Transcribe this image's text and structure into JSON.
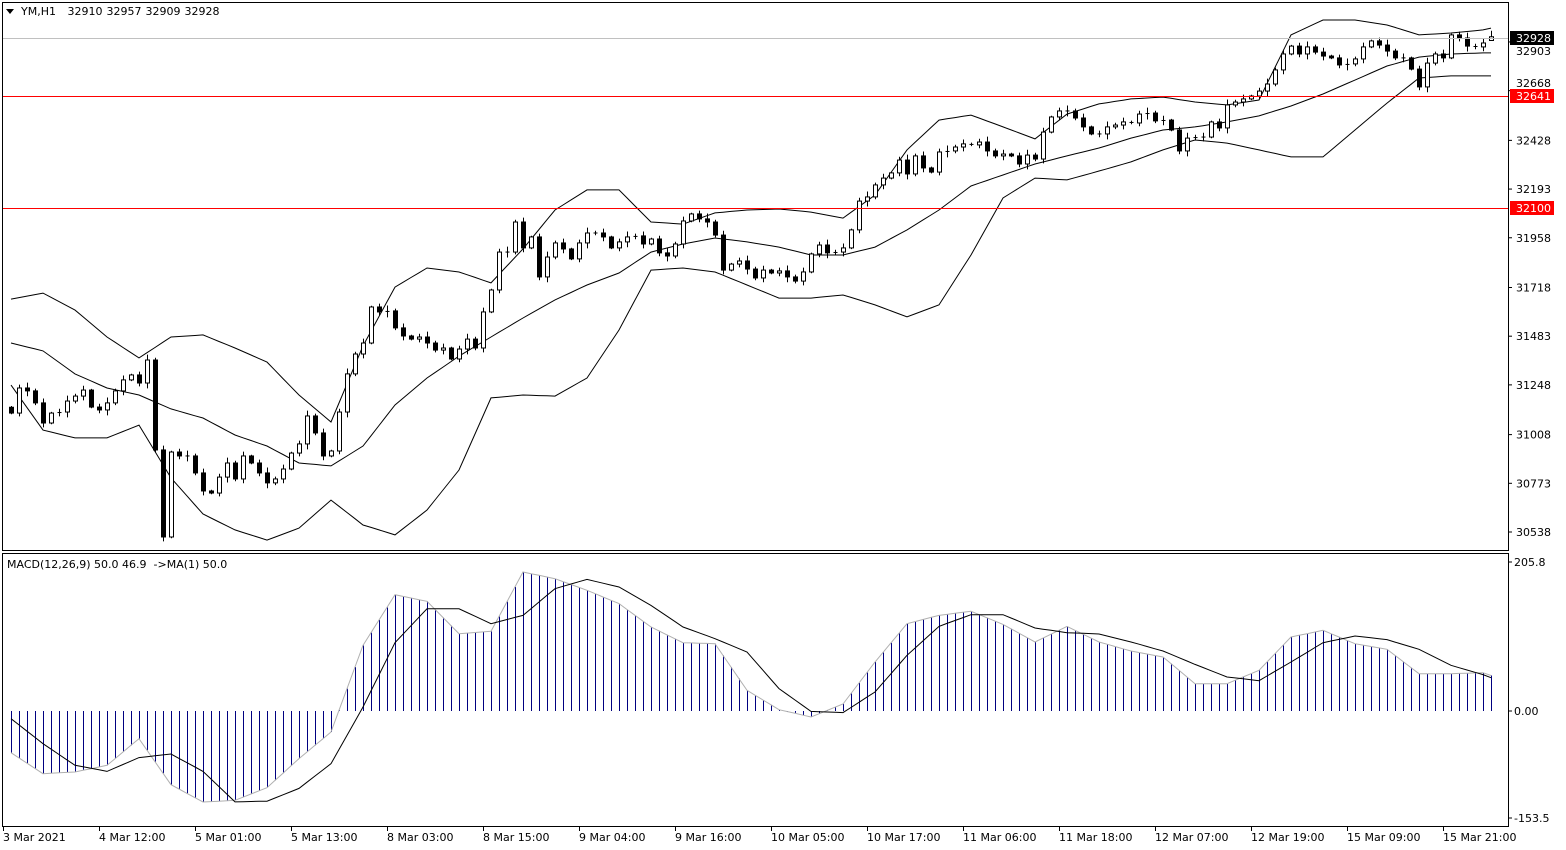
{
  "header": {
    "symbol": "YM,H1",
    "open": "32910",
    "high": "32957",
    "low": "32909",
    "close": "32928"
  },
  "macd_label": "MACD(12,26,9) 50.0 46.9  ->MA(1) 50.0",
  "chart_data": {
    "type": "candlestick",
    "symbol": "YM",
    "timeframe": "H1",
    "colors": {
      "bull_body": "#ffffff",
      "bear_body": "#000000",
      "level_line": "#ff0000",
      "bid_line": "#c0c0c0",
      "macd_histogram": "#000080",
      "macd_line": "#b0b0b0",
      "signal_line": "#000000"
    },
    "closes": [
      31112,
      31233,
      31219,
      31161,
      31064,
      31112,
      31117,
      31170,
      31194,
      31223,
      31141,
      31127,
      31161,
      31219,
      31272,
      31296,
      31257,
      31368,
      30934,
      30514,
      30924,
      30905,
      30905,
      30823,
      30736,
      30726,
      30803,
      30871,
      30794,
      30905,
      30871,
      30823,
      30775,
      30794,
      30842,
      30919,
      30963,
      31098,
      31016,
      30905,
      30929,
      31117,
      31301,
      31397,
      31450,
      31624,
      31600,
      31605,
      31523,
      31484,
      31469,
      31479,
      31450,
      31416,
      31426,
      31373,
      31421,
      31469,
      31426,
      31600,
      31706,
      31889,
      31889,
      32034,
      31909,
      31962,
      31769,
      31865,
      31933,
      31904,
      31856,
      31933,
      31981,
      31981,
      31962,
      31909,
      31938,
      31962,
      31967,
      31928,
      31952,
      31885,
      31870,
      31928,
      32039,
      32073,
      32049,
      32034,
      31971,
      31802,
      31831,
      31846,
      31807,
      31764,
      31802,
      31788,
      31798,
      31769,
      31749,
      31793,
      31880,
      31923,
      31885,
      31889,
      31909,
      31996,
      32135,
      32155,
      32213,
      32246,
      32271,
      32333,
      32266,
      32353,
      32295,
      32275,
      32372,
      32377,
      32396,
      32411,
      32406,
      32420,
      32377,
      32353,
      32362,
      32353,
      32314,
      32357,
      32338,
      32468,
      32541,
      32570,
      32570,
      32536,
      32493,
      32459,
      32459,
      32493,
      32502,
      32517,
      32512,
      32555,
      32560,
      32522,
      32526,
      32478,
      32377,
      32439,
      32444,
      32444,
      32517,
      32488,
      32599,
      32613,
      32628,
      32642,
      32666,
      32700,
      32768,
      32845,
      32883,
      32845,
      32879,
      32854,
      32835,
      32826,
      32792,
      32797,
      32821,
      32879,
      32908,
      32888,
      32859,
      32826,
      32826,
      32772,
      32686,
      32801,
      32845,
      32826,
      32937,
      32922,
      32883,
      32879,
      32898,
      32928
    ],
    "last_bar": {
      "open": 32910,
      "high": 32957,
      "low": 32909,
      "close": 32928
    },
    "bollinger": {
      "upper": [
        31662,
        31691,
        31609,
        31479,
        31378,
        31479,
        31489,
        31426,
        31358,
        31199,
        31069,
        31436,
        31720,
        31812,
        31793,
        31740,
        31904,
        32092,
        32189,
        32189,
        32034,
        32024,
        32078,
        32092,
        32097,
        32082,
        32053,
        32164,
        32382,
        32526,
        32550,
        32493,
        32435,
        32555,
        32604,
        32628,
        32637,
        32613,
        32599,
        32623,
        32937,
        33009,
        33009,
        32985,
        32937,
        32946,
        32961,
        32970
      ],
      "middle": [
        31450,
        31412,
        31301,
        31233,
        31199,
        31132,
        31088,
        31006,
        30953,
        30871,
        30857,
        30953,
        31151,
        31281,
        31387,
        31479,
        31571,
        31658,
        31730,
        31788,
        31889,
        31928,
        31957,
        31938,
        31913,
        31875,
        31875,
        31913,
        31996,
        32092,
        32208,
        32261,
        32314,
        32353,
        32391,
        32439,
        32478,
        32493,
        32517,
        32546,
        32594,
        32652,
        32719,
        32787,
        32830,
        32845,
        32850,
        32850
      ],
      "lower": [
        31247,
        31030,
        30992,
        30992,
        31054,
        30799,
        30625,
        30548,
        30499,
        30557,
        30692,
        30572,
        30524,
        30644,
        30837,
        31185,
        31199,
        31194,
        31281,
        31513,
        31802,
        31812,
        31793,
        31730,
        31667,
        31667,
        31682,
        31634,
        31576,
        31634,
        31875,
        32150,
        32246,
        32237,
        32280,
        32324,
        32382,
        32430,
        32415,
        32382,
        32348,
        32348,
        32478,
        32608,
        32729,
        32739,
        32739,
        32739
      ]
    },
    "macd": {
      "main": [
        -58.7,
        -88.3,
        -85.9,
        -76.5,
        -39.0,
        -103.8,
        -128.2,
        -125.8,
        -108.0,
        -67.1,
        -29.6,
        92.5,
        163.8,
        154.5,
        108.9,
        112.2,
        195.8,
        186.4,
        170.0,
        151.2,
        118.3,
        96.2,
        94.8,
        29.1,
        1.9,
        -8.5,
        9.9,
        69.0,
        123.0,
        134.7,
        140.4,
        122.0,
        97.2,
        119.2,
        97.2,
        84.5,
        76.1,
        38.5,
        38.5,
        57.3,
        104.2,
        113.6,
        94.8,
        86.9,
        52.6,
        52.6,
        54.0,
        50.0
      ],
      "signal": [
        -10.8,
        -46.0,
        -76.5,
        -85.0,
        -65.7,
        -60.6,
        -85.0,
        -128.0,
        -127.0,
        -109.0,
        -74.2,
        5.6,
        96.2,
        144.0,
        144.0,
        123.0,
        134.7,
        172.3,
        185.4,
        174.6,
        148.8,
        118.3,
        101.9,
        83.1,
        31.5,
        -0.5,
        -2.3,
        26.8,
        78.4,
        119.2,
        135.7,
        135.7,
        116.9,
        110.3,
        108.5,
        97.2,
        84.5,
        65.7,
        47.9,
        42.7,
        69.0,
        96.2,
        105.6,
        100.5,
        86.9,
        64.3,
        51.2,
        46.9
      ],
      "axis_ticks": [
        "205.8",
        "0.00",
        "-153.5"
      ]
    },
    "price_axis": {
      "ticks": [
        "32903",
        "32668",
        "32428",
        "32193",
        "31958",
        "31718",
        "31483",
        "31248",
        "31008",
        "30773",
        "30538"
      ],
      "current_price": "32928",
      "levels": [
        "32641",
        "32100"
      ]
    },
    "time_axis": [
      "3 Mar 2021",
      "4 Mar 12:00",
      "5 Mar 01:00",
      "5 Mar 13:00",
      "8 Mar 03:00",
      "8 Mar 15:00",
      "9 Mar 04:00",
      "9 Mar 16:00",
      "10 Mar 05:00",
      "10 Mar 17:00",
      "11 Mar 06:00",
      "11 Mar 18:00",
      "12 Mar 07:00",
      "12 Mar 19:00",
      "15 Mar 09:00",
      "15 Mar 21:00"
    ]
  }
}
